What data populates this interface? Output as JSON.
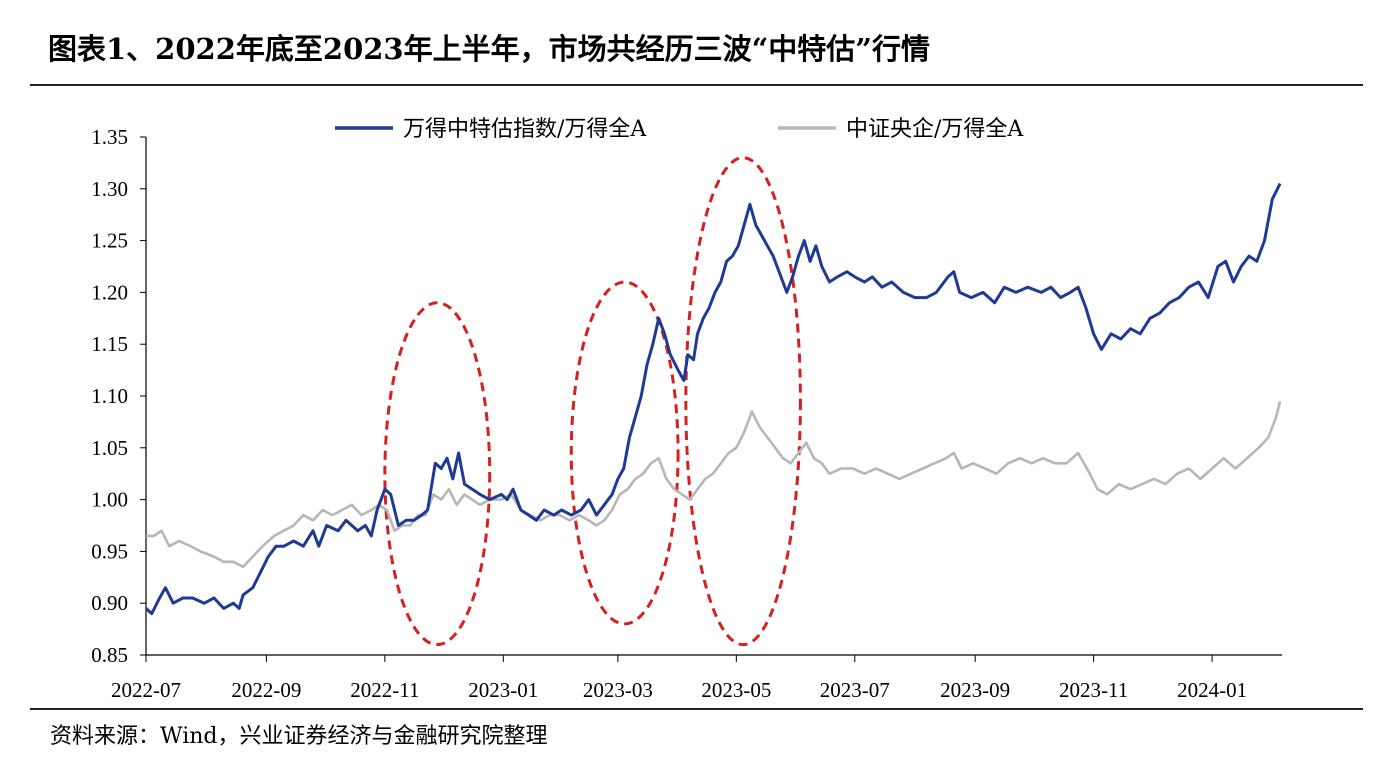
{
  "title": "图表1、2022年底至2023年上半年，市场共经历三波“中特估”行情",
  "source": "资料来源：Wind，兴业证券经济与金融研究院整理",
  "colors": {
    "series1": "#1f3a93",
    "series2": "#b7b7b7",
    "highlight": "#d62020",
    "axis": "#000000"
  },
  "chart_data": {
    "type": "line",
    "title": "图表1、2022年底至2023年上半年，市场共经历三波“中特估”行情",
    "xlabel": "",
    "ylabel": "",
    "ylim": [
      0.85,
      1.35
    ],
    "yticks": [
      "1.35",
      "1.30",
      "1.25",
      "1.20",
      "1.15",
      "1.10",
      "1.05",
      "1.00",
      "0.95",
      "0.90",
      "0.85"
    ],
    "xticks": [
      "2022-07",
      "2022-09",
      "2022-11",
      "2023-01",
      "2023-03",
      "2023-05",
      "2023-07",
      "2023-09",
      "2023-11",
      "2024-01"
    ],
    "x_range": [
      "2022-07-01",
      "2024-02-06"
    ],
    "legend_position": "top",
    "grid": false,
    "annotations": [
      {
        "type": "ellipse",
        "center": "2022-12-01",
        "x_span": [
          "2022-11-01",
          "2022-12-25"
        ],
        "y_span": [
          0.86,
          1.19
        ]
      },
      {
        "type": "ellipse",
        "center": "2023-03-04",
        "x_span": [
          "2023-02-05",
          "2023-04-01"
        ],
        "y_span": [
          0.88,
          1.21
        ]
      },
      {
        "type": "ellipse",
        "center": "2023-05-04",
        "x_span": [
          "2023-04-05",
          "2023-06-03"
        ],
        "y_span": [
          0.86,
          1.33
        ]
      }
    ],
    "series": [
      {
        "name": "万得中特估指数/万得全A",
        "color": "#1f3a93",
        "points": [
          [
            "2022-07-01",
            0.895
          ],
          [
            "2022-07-04",
            0.89
          ],
          [
            "2022-07-08",
            0.905
          ],
          [
            "2022-07-11",
            0.915
          ],
          [
            "2022-07-15",
            0.9
          ],
          [
            "2022-07-20",
            0.905
          ],
          [
            "2022-07-25",
            0.905
          ],
          [
            "2022-07-31",
            0.9
          ],
          [
            "2022-08-05",
            0.905
          ],
          [
            "2022-08-10",
            0.895
          ],
          [
            "2022-08-15",
            0.9
          ],
          [
            "2022-08-18",
            0.895
          ],
          [
            "2022-08-20",
            0.908
          ],
          [
            "2022-08-25",
            0.915
          ],
          [
            "2022-08-29",
            0.93
          ],
          [
            "2022-09-02",
            0.945
          ],
          [
            "2022-09-06",
            0.955
          ],
          [
            "2022-09-10",
            0.955
          ],
          [
            "2022-09-15",
            0.96
          ],
          [
            "2022-09-20",
            0.955
          ],
          [
            "2022-09-25",
            0.97
          ],
          [
            "2022-09-28",
            0.955
          ],
          [
            "2022-10-02",
            0.975
          ],
          [
            "2022-10-08",
            0.97
          ],
          [
            "2022-10-12",
            0.98
          ],
          [
            "2022-10-18",
            0.97
          ],
          [
            "2022-10-22",
            0.975
          ],
          [
            "2022-10-25",
            0.965
          ],
          [
            "2022-10-28",
            0.99
          ],
          [
            "2022-11-01",
            1.01
          ],
          [
            "2022-11-04",
            1.005
          ],
          [
            "2022-11-08",
            0.975
          ],
          [
            "2022-11-12",
            0.98
          ],
          [
            "2022-11-16",
            0.98
          ],
          [
            "2022-11-20",
            0.985
          ],
          [
            "2022-11-23",
            0.99
          ],
          [
            "2022-11-27",
            1.035
          ],
          [
            "2022-11-30",
            1.03
          ],
          [
            "2022-12-03",
            1.04
          ],
          [
            "2022-12-06",
            1.02
          ],
          [
            "2022-12-09",
            1.045
          ],
          [
            "2022-12-12",
            1.015
          ],
          [
            "2022-12-16",
            1.01
          ],
          [
            "2022-12-20",
            1.005
          ],
          [
            "2022-12-25",
            1.0
          ],
          [
            "2022-12-31",
            1.005
          ],
          [
            "2023-01-03",
            1.0
          ],
          [
            "2023-01-06",
            1.01
          ],
          [
            "2023-01-10",
            0.99
          ],
          [
            "2023-01-14",
            0.985
          ],
          [
            "2023-01-18",
            0.98
          ],
          [
            "2023-01-22",
            0.99
          ],
          [
            "2023-01-27",
            0.985
          ],
          [
            "2023-01-31",
            0.99
          ],
          [
            "2023-02-05",
            0.985
          ],
          [
            "2023-02-10",
            0.99
          ],
          [
            "2023-02-14",
            1.0
          ],
          [
            "2023-02-18",
            0.985
          ],
          [
            "2023-02-22",
            0.995
          ],
          [
            "2023-02-26",
            1.005
          ],
          [
            "2023-03-01",
            1.02
          ],
          [
            "2023-03-04",
            1.03
          ],
          [
            "2023-03-07",
            1.06
          ],
          [
            "2023-03-10",
            1.08
          ],
          [
            "2023-03-13",
            1.1
          ],
          [
            "2023-03-16",
            1.13
          ],
          [
            "2023-03-19",
            1.15
          ],
          [
            "2023-03-22",
            1.175
          ],
          [
            "2023-03-25",
            1.16
          ],
          [
            "2023-03-28",
            1.14
          ],
          [
            "2023-04-01",
            1.125
          ],
          [
            "2023-04-04",
            1.115
          ],
          [
            "2023-04-06",
            1.14
          ],
          [
            "2023-04-09",
            1.135
          ],
          [
            "2023-04-11",
            1.16
          ],
          [
            "2023-04-14",
            1.175
          ],
          [
            "2023-04-17",
            1.185
          ],
          [
            "2023-04-20",
            1.2
          ],
          [
            "2023-04-23",
            1.21
          ],
          [
            "2023-04-26",
            1.23
          ],
          [
            "2023-04-29",
            1.235
          ],
          [
            "2023-05-02",
            1.245
          ],
          [
            "2023-05-05",
            1.265
          ],
          [
            "2023-05-08",
            1.285
          ],
          [
            "2023-05-11",
            1.265
          ],
          [
            "2023-05-14",
            1.255
          ],
          [
            "2023-05-17",
            1.245
          ],
          [
            "2023-05-20",
            1.235
          ],
          [
            "2023-05-24",
            1.215
          ],
          [
            "2023-05-27",
            1.2
          ],
          [
            "2023-05-30",
            1.215
          ],
          [
            "2023-06-02",
            1.235
          ],
          [
            "2023-06-05",
            1.25
          ],
          [
            "2023-06-08",
            1.23
          ],
          [
            "2023-06-11",
            1.245
          ],
          [
            "2023-06-14",
            1.225
          ],
          [
            "2023-06-18",
            1.21
          ],
          [
            "2023-06-22",
            1.215
          ],
          [
            "2023-06-27",
            1.22
          ],
          [
            "2023-07-01",
            1.215
          ],
          [
            "2023-07-06",
            1.21
          ],
          [
            "2023-07-10",
            1.215
          ],
          [
            "2023-07-15",
            1.205
          ],
          [
            "2023-07-20",
            1.21
          ],
          [
            "2023-07-26",
            1.2
          ],
          [
            "2023-08-01",
            1.195
          ],
          [
            "2023-08-07",
            1.195
          ],
          [
            "2023-08-12",
            1.2
          ],
          [
            "2023-08-18",
            1.215
          ],
          [
            "2023-08-21",
            1.22
          ],
          [
            "2023-08-24",
            1.2
          ],
          [
            "2023-08-30",
            1.195
          ],
          [
            "2023-09-05",
            1.2
          ],
          [
            "2023-09-11",
            1.19
          ],
          [
            "2023-09-16",
            1.205
          ],
          [
            "2023-09-22",
            1.2
          ],
          [
            "2023-09-28",
            1.205
          ],
          [
            "2023-10-05",
            1.2
          ],
          [
            "2023-10-10",
            1.205
          ],
          [
            "2023-10-15",
            1.195
          ],
          [
            "2023-10-20",
            1.2
          ],
          [
            "2023-10-24",
            1.205
          ],
          [
            "2023-10-28",
            1.185
          ],
          [
            "2023-11-01",
            1.16
          ],
          [
            "2023-11-05",
            1.145
          ],
          [
            "2023-11-10",
            1.16
          ],
          [
            "2023-11-15",
            1.155
          ],
          [
            "2023-11-20",
            1.165
          ],
          [
            "2023-11-25",
            1.16
          ],
          [
            "2023-11-30",
            1.175
          ],
          [
            "2023-12-05",
            1.18
          ],
          [
            "2023-12-10",
            1.19
          ],
          [
            "2023-12-15",
            1.195
          ],
          [
            "2023-12-20",
            1.205
          ],
          [
            "2023-12-25",
            1.21
          ],
          [
            "2023-12-30",
            1.195
          ],
          [
            "2024-01-04",
            1.225
          ],
          [
            "2024-01-08",
            1.23
          ],
          [
            "2024-01-12",
            1.21
          ],
          [
            "2024-01-16",
            1.225
          ],
          [
            "2024-01-20",
            1.235
          ],
          [
            "2024-01-24",
            1.23
          ],
          [
            "2024-01-28",
            1.25
          ],
          [
            "2024-02-01",
            1.29
          ],
          [
            "2024-02-05",
            1.305
          ]
        ]
      },
      {
        "name": "中证央企/万得全A",
        "color": "#b7b7b7",
        "points": [
          [
            "2022-07-01",
            0.965
          ],
          [
            "2022-07-05",
            0.965
          ],
          [
            "2022-07-09",
            0.97
          ],
          [
            "2022-07-13",
            0.955
          ],
          [
            "2022-07-18",
            0.96
          ],
          [
            "2022-07-24",
            0.955
          ],
          [
            "2022-07-29",
            0.95
          ],
          [
            "2022-08-05",
            0.945
          ],
          [
            "2022-08-10",
            0.94
          ],
          [
            "2022-08-15",
            0.94
          ],
          [
            "2022-08-20",
            0.935
          ],
          [
            "2022-08-25",
            0.945
          ],
          [
            "2022-08-30",
            0.955
          ],
          [
            "2022-09-05",
            0.965
          ],
          [
            "2022-09-10",
            0.97
          ],
          [
            "2022-09-15",
            0.975
          ],
          [
            "2022-09-20",
            0.985
          ],
          [
            "2022-09-25",
            0.98
          ],
          [
            "2022-09-30",
            0.99
          ],
          [
            "2022-10-05",
            0.985
          ],
          [
            "2022-10-10",
            0.99
          ],
          [
            "2022-10-15",
            0.995
          ],
          [
            "2022-10-20",
            0.985
          ],
          [
            "2022-10-25",
            0.99
          ],
          [
            "2022-10-29",
            0.995
          ],
          [
            "2022-11-02",
            0.99
          ],
          [
            "2022-11-06",
            0.97
          ],
          [
            "2022-11-10",
            0.975
          ],
          [
            "2022-11-14",
            0.975
          ],
          [
            "2022-11-18",
            0.985
          ],
          [
            "2022-11-22",
            0.985
          ],
          [
            "2022-11-26",
            1.005
          ],
          [
            "2022-11-30",
            1.0
          ],
          [
            "2022-12-04",
            1.01
          ],
          [
            "2022-12-08",
            0.995
          ],
          [
            "2022-12-12",
            1.005
          ],
          [
            "2022-12-16",
            1.0
          ],
          [
            "2022-12-20",
            0.995
          ],
          [
            "2022-12-25",
            1.0
          ],
          [
            "2022-12-31",
            1.0
          ],
          [
            "2023-01-05",
            1.005
          ],
          [
            "2023-01-10",
            0.99
          ],
          [
            "2023-01-15",
            0.985
          ],
          [
            "2023-01-20",
            0.98
          ],
          [
            "2023-01-25",
            0.985
          ],
          [
            "2023-01-30",
            0.985
          ],
          [
            "2023-02-04",
            0.98
          ],
          [
            "2023-02-09",
            0.985
          ],
          [
            "2023-02-14",
            0.98
          ],
          [
            "2023-02-18",
            0.975
          ],
          [
            "2023-02-22",
            0.98
          ],
          [
            "2023-02-26",
            0.99
          ],
          [
            "2023-03-02",
            1.005
          ],
          [
            "2023-03-06",
            1.01
          ],
          [
            "2023-03-10",
            1.02
          ],
          [
            "2023-03-14",
            1.025
          ],
          [
            "2023-03-18",
            1.035
          ],
          [
            "2023-03-22",
            1.04
          ],
          [
            "2023-03-26",
            1.02
          ],
          [
            "2023-03-30",
            1.01
          ],
          [
            "2023-04-03",
            1.005
          ],
          [
            "2023-04-07",
            1.0
          ],
          [
            "2023-04-11",
            1.01
          ],
          [
            "2023-04-15",
            1.02
          ],
          [
            "2023-04-19",
            1.025
          ],
          [
            "2023-04-23",
            1.035
          ],
          [
            "2023-04-27",
            1.045
          ],
          [
            "2023-05-01",
            1.05
          ],
          [
            "2023-05-05",
            1.065
          ],
          [
            "2023-05-09",
            1.085
          ],
          [
            "2023-05-13",
            1.07
          ],
          [
            "2023-05-17",
            1.06
          ],
          [
            "2023-05-21",
            1.05
          ],
          [
            "2023-05-25",
            1.04
          ],
          [
            "2023-05-29",
            1.035
          ],
          [
            "2023-06-02",
            1.045
          ],
          [
            "2023-06-06",
            1.055
          ],
          [
            "2023-06-10",
            1.04
          ],
          [
            "2023-06-14",
            1.035
          ],
          [
            "2023-06-18",
            1.025
          ],
          [
            "2023-06-24",
            1.03
          ],
          [
            "2023-06-30",
            1.03
          ],
          [
            "2023-07-06",
            1.025
          ],
          [
            "2023-07-12",
            1.03
          ],
          [
            "2023-07-18",
            1.025
          ],
          [
            "2023-07-24",
            1.02
          ],
          [
            "2023-07-30",
            1.025
          ],
          [
            "2023-08-05",
            1.03
          ],
          [
            "2023-08-11",
            1.035
          ],
          [
            "2023-08-17",
            1.04
          ],
          [
            "2023-08-21",
            1.045
          ],
          [
            "2023-08-25",
            1.03
          ],
          [
            "2023-08-31",
            1.035
          ],
          [
            "2023-09-06",
            1.03
          ],
          [
            "2023-09-12",
            1.025
          ],
          [
            "2023-09-18",
            1.035
          ],
          [
            "2023-09-24",
            1.04
          ],
          [
            "2023-09-30",
            1.035
          ],
          [
            "2023-10-06",
            1.04
          ],
          [
            "2023-10-12",
            1.035
          ],
          [
            "2023-10-18",
            1.035
          ],
          [
            "2023-10-24",
            1.045
          ],
          [
            "2023-10-30",
            1.025
          ],
          [
            "2023-11-03",
            1.01
          ],
          [
            "2023-11-08",
            1.005
          ],
          [
            "2023-11-14",
            1.015
          ],
          [
            "2023-11-20",
            1.01
          ],
          [
            "2023-11-26",
            1.015
          ],
          [
            "2023-12-02",
            1.02
          ],
          [
            "2023-12-08",
            1.015
          ],
          [
            "2023-12-14",
            1.025
          ],
          [
            "2023-12-20",
            1.03
          ],
          [
            "2023-12-26",
            1.02
          ],
          [
            "2024-01-01",
            1.03
          ],
          [
            "2024-01-07",
            1.04
          ],
          [
            "2024-01-13",
            1.03
          ],
          [
            "2024-01-19",
            1.04
          ],
          [
            "2024-01-25",
            1.05
          ],
          [
            "2024-01-30",
            1.06
          ],
          [
            "2024-02-03",
            1.08
          ],
          [
            "2024-02-05",
            1.095
          ]
        ]
      }
    ]
  }
}
